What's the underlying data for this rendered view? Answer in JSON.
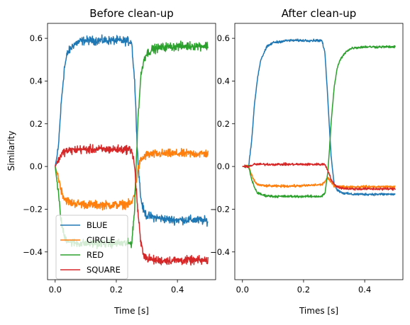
{
  "chart_data": [
    {
      "type": "line",
      "title": "Before clean-up",
      "xlabel": "Time [s]",
      "ylabel": "Similarity",
      "xlim": [
        -0.025,
        0.525
      ],
      "ylim": [
        -0.53,
        0.67
      ],
      "xticks": [
        0.0,
        0.2,
        0.4
      ],
      "xtick_labels": [
        "0.0",
        "0.2",
        "0.4"
      ],
      "yticks": [
        -0.4,
        -0.2,
        0.0,
        0.2,
        0.4,
        0.6
      ],
      "ytick_labels": [
        "−0.4",
        "−0.2",
        "0.0",
        "0.2",
        "0.4",
        "0.6"
      ],
      "legend_position": "lower-left",
      "noise": 0.014,
      "series": [
        {
          "name": "BLUE",
          "color": "#1f77b4",
          "x": [
            0.0,
            0.01,
            0.02,
            0.03,
            0.04,
            0.06,
            0.08,
            0.1,
            0.15,
            0.2,
            0.25,
            0.26,
            0.27,
            0.28,
            0.29,
            0.3,
            0.33,
            0.38,
            0.45,
            0.5
          ],
          "y": [
            0.0,
            0.08,
            0.3,
            0.46,
            0.53,
            0.57,
            0.585,
            0.59,
            0.59,
            0.59,
            0.585,
            0.4,
            0.05,
            -0.15,
            -0.21,
            -0.23,
            -0.24,
            -0.25,
            -0.25,
            -0.255
          ]
        },
        {
          "name": "CIRCLE",
          "color": "#ff7f0e",
          "x": [
            0.0,
            0.01,
            0.02,
            0.03,
            0.05,
            0.08,
            0.12,
            0.2,
            0.25,
            0.26,
            0.27,
            0.28,
            0.3,
            0.35,
            0.45,
            0.5
          ],
          "y": [
            0.0,
            -0.05,
            -0.11,
            -0.15,
            -0.17,
            -0.175,
            -0.18,
            -0.18,
            -0.175,
            -0.12,
            -0.02,
            0.03,
            0.055,
            0.06,
            0.06,
            0.06
          ]
        },
        {
          "name": "RED",
          "color": "#2ca02c",
          "x": [
            0.0,
            0.01,
            0.02,
            0.03,
            0.05,
            0.08,
            0.12,
            0.2,
            0.25,
            0.26,
            0.27,
            0.28,
            0.29,
            0.3,
            0.32,
            0.36,
            0.45,
            0.5
          ],
          "y": [
            0.0,
            -0.12,
            -0.26,
            -0.33,
            -0.355,
            -0.36,
            -0.36,
            -0.36,
            -0.36,
            -0.2,
            0.2,
            0.42,
            0.5,
            0.53,
            0.55,
            0.56,
            0.565,
            0.565
          ]
        },
        {
          "name": "SQUARE",
          "color": "#d62728",
          "x": [
            0.0,
            0.01,
            0.02,
            0.03,
            0.05,
            0.08,
            0.12,
            0.2,
            0.25,
            0.26,
            0.27,
            0.28,
            0.29,
            0.3,
            0.33,
            0.4,
            0.5
          ],
          "y": [
            0.0,
            0.03,
            0.055,
            0.07,
            0.075,
            0.08,
            0.08,
            0.08,
            0.08,
            0.0,
            -0.2,
            -0.36,
            -0.41,
            -0.43,
            -0.44,
            -0.44,
            -0.44
          ]
        }
      ]
    },
    {
      "type": "line",
      "title": "After clean-up",
      "xlabel": "Times [s]",
      "ylabel": "",
      "xlim": [
        -0.025,
        0.525
      ],
      "ylim": [
        -0.53,
        0.67
      ],
      "xticks": [
        0.0,
        0.2,
        0.4
      ],
      "xtick_labels": [
        "0.0",
        "0.2",
        "0.4"
      ],
      "yticks": [
        -0.4,
        -0.2,
        0.0,
        0.2,
        0.4,
        0.6
      ],
      "ytick_labels": [
        "−0.4",
        "−0.2",
        "0.0",
        "0.2",
        "0.4",
        "0.6"
      ],
      "noise": 0.004,
      "series": [
        {
          "name": "BLUE",
          "color": "#1f77b4",
          "x": [
            0.0,
            0.02,
            0.03,
            0.04,
            0.05,
            0.06,
            0.08,
            0.1,
            0.15,
            0.2,
            0.26,
            0.27,
            0.28,
            0.29,
            0.3,
            0.31,
            0.33,
            0.36,
            0.4,
            0.5
          ],
          "y": [
            0.0,
            0.0,
            0.12,
            0.3,
            0.42,
            0.5,
            0.56,
            0.58,
            0.59,
            0.59,
            0.59,
            0.53,
            0.3,
            0.05,
            -0.08,
            -0.11,
            -0.125,
            -0.13,
            -0.13,
            -0.13
          ]
        },
        {
          "name": "CIRCLE",
          "color": "#ff7f0e",
          "x": [
            0.0,
            0.02,
            0.03,
            0.04,
            0.05,
            0.07,
            0.1,
            0.15,
            0.2,
            0.26,
            0.27,
            0.28,
            0.29,
            0.3,
            0.32,
            0.35,
            0.4,
            0.5
          ],
          "y": [
            0.0,
            0.0,
            -0.04,
            -0.07,
            -0.085,
            -0.09,
            -0.092,
            -0.092,
            -0.09,
            -0.085,
            -0.07,
            -0.055,
            -0.075,
            -0.09,
            -0.095,
            -0.095,
            -0.095,
            -0.095
          ]
        },
        {
          "name": "RED",
          "color": "#2ca02c",
          "x": [
            0.0,
            0.02,
            0.03,
            0.04,
            0.05,
            0.07,
            0.1,
            0.15,
            0.2,
            0.26,
            0.27,
            0.28,
            0.29,
            0.3,
            0.31,
            0.32,
            0.34,
            0.36,
            0.4,
            0.5
          ],
          "y": [
            0.0,
            0.0,
            -0.06,
            -0.1,
            -0.125,
            -0.135,
            -0.14,
            -0.14,
            -0.14,
            -0.14,
            -0.125,
            -0.02,
            0.2,
            0.37,
            0.46,
            0.5,
            0.54,
            0.555,
            0.56,
            0.56
          ]
        },
        {
          "name": "SQUARE",
          "color": "#d62728",
          "x": [
            0.0,
            0.02,
            0.03,
            0.04,
            0.05,
            0.1,
            0.2,
            0.26,
            0.27,
            0.28,
            0.29,
            0.3,
            0.32,
            0.35,
            0.4,
            0.5
          ],
          "y": [
            0.0,
            0.0,
            0.005,
            0.01,
            0.01,
            0.01,
            0.01,
            0.01,
            0.01,
            -0.02,
            -0.06,
            -0.085,
            -0.1,
            -0.105,
            -0.105,
            -0.105
          ]
        }
      ]
    }
  ]
}
